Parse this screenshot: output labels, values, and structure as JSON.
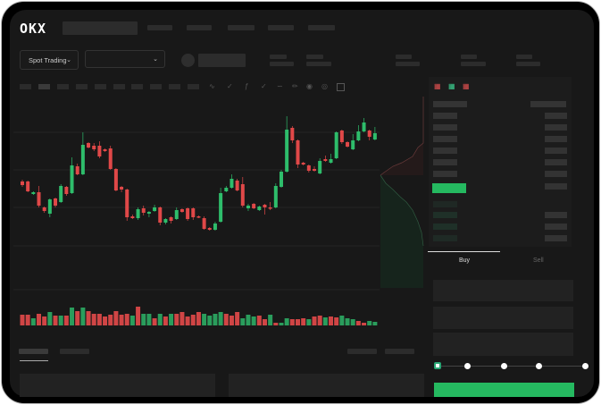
{
  "header": {
    "logo": "OKX"
  },
  "toolbar": {
    "market_selector": "Spot Trading",
    "pair_selector": ""
  },
  "order_form": {
    "tabs": [
      "Buy",
      "Sell"
    ],
    "active_tab": "Buy",
    "leverage_slider_value_percent": 0,
    "submit_color": "#25b960"
  },
  "colors": {
    "up": "#2ebd6b",
    "down": "#e04848",
    "background": "#181818"
  },
  "chart_data": {
    "type": "candlestick",
    "title": "",
    "xlabel": "",
    "ylabel": "",
    "grid": true,
    "candles": [
      [
        97,
        93,
        99,
        91
      ],
      [
        97,
        86,
        98,
        85
      ],
      [
        83,
        85,
        86,
        82
      ],
      [
        85,
        70,
        92,
        68
      ],
      [
        68,
        64,
        69,
        62
      ],
      [
        61,
        77,
        78,
        57
      ],
      [
        78,
        70,
        79,
        68
      ],
      [
        74,
        92,
        94,
        73
      ],
      [
        91,
        83,
        92,
        81
      ],
      [
        84,
        115,
        124,
        83
      ],
      [
        114,
        105,
        117,
        104
      ],
      [
        105,
        138,
        152,
        104
      ],
      [
        140,
        135,
        141,
        134
      ],
      [
        137,
        133,
        140,
        131
      ],
      [
        137,
        125,
        142,
        123
      ],
      [
        133,
        131,
        134,
        130
      ],
      [
        134,
        111,
        137,
        110
      ],
      [
        111,
        87,
        112,
        86
      ],
      [
        91,
        88,
        92,
        85
      ],
      [
        88,
        57,
        89,
        53
      ],
      [
        58,
        56,
        60,
        55
      ],
      [
        56,
        66,
        68,
        54
      ],
      [
        67,
        62,
        70,
        59
      ],
      [
        61,
        63,
        64,
        57
      ],
      [
        64,
        68,
        71,
        63
      ],
      [
        68,
        51,
        69,
        48
      ],
      [
        51,
        55,
        56,
        49
      ],
      [
        57,
        53,
        58,
        50
      ],
      [
        55,
        65,
        68,
        54
      ],
      [
        66,
        63,
        67,
        62
      ],
      [
        67,
        55,
        68,
        53
      ],
      [
        67,
        57,
        68,
        54
      ],
      [
        58,
        57,
        59,
        56
      ],
      [
        56,
        44,
        58,
        43
      ],
      [
        45,
        43,
        46,
        42
      ],
      [
        43,
        50,
        52,
        42
      ],
      [
        52,
        84,
        90,
        51
      ],
      [
        86,
        90,
        92,
        85
      ],
      [
        90,
        100,
        105,
        89
      ],
      [
        98,
        87,
        100,
        86
      ],
      [
        94,
        70,
        102,
        68
      ],
      [
        67,
        70,
        72,
        64
      ],
      [
        72,
        67,
        73,
        66
      ],
      [
        65,
        69,
        70,
        64
      ],
      [
        71,
        68,
        72,
        60
      ],
      [
        68,
        67,
        74,
        65
      ],
      [
        68,
        92,
        95,
        67
      ],
      [
        91,
        108,
        110,
        90
      ],
      [
        108,
        155,
        170,
        107
      ],
      [
        157,
        143,
        159,
        140
      ],
      [
        143,
        116,
        144,
        112
      ],
      [
        118,
        116,
        119,
        115
      ],
      [
        115,
        109,
        116,
        107
      ],
      [
        111,
        109,
        114,
        108
      ],
      [
        106,
        120,
        123,
        105
      ],
      [
        122,
        120,
        126,
        119
      ],
      [
        118,
        122,
        128,
        117
      ],
      [
        123,
        152,
        153,
        122
      ],
      [
        154,
        141,
        155,
        139
      ],
      [
        141,
        136,
        142,
        135
      ],
      [
        133,
        143,
        150,
        132
      ],
      [
        143,
        153,
        160,
        142
      ],
      [
        153,
        163,
        168,
        152
      ],
      [
        154,
        147,
        155,
        143
      ],
      [
        144,
        151,
        158,
        143
      ]
    ],
    "volume": [
      12,
      12,
      8,
      13,
      10,
      15,
      11,
      11,
      11,
      20,
      16,
      20,
      16,
      13,
      13,
      10,
      12,
      16,
      12,
      13,
      11,
      21,
      13,
      13,
      8,
      13,
      10,
      13,
      13,
      15,
      10,
      12,
      15,
      13,
      11,
      13,
      15,
      13,
      11,
      15,
      8,
      12,
      10,
      11,
      7,
      12,
      3,
      3,
      8,
      7,
      7,
      8,
      7,
      10,
      11,
      9,
      10,
      9,
      11,
      8,
      7,
      5,
      3,
      5,
      4
    ],
    "volume_colors": [
      "r",
      "r",
      "g",
      "r",
      "r",
      "g",
      "r",
      "g",
      "r",
      "g",
      "r",
      "g",
      "r",
      "r",
      "r",
      "r",
      "r",
      "r",
      "r",
      "r",
      "g",
      "r",
      "g",
      "g",
      "r",
      "g",
      "r",
      "g",
      "r",
      "r",
      "r",
      "r",
      "r",
      "g",
      "g",
      "g",
      "g",
      "r",
      "r",
      "r",
      "g",
      "g",
      "g",
      "r",
      "r",
      "g",
      "r",
      "g",
      "g",
      "r",
      "r",
      "r",
      "g",
      "r",
      "r",
      "g",
      "r",
      "r",
      "g",
      "g",
      "g",
      "r",
      "r",
      "g",
      "g"
    ]
  }
}
